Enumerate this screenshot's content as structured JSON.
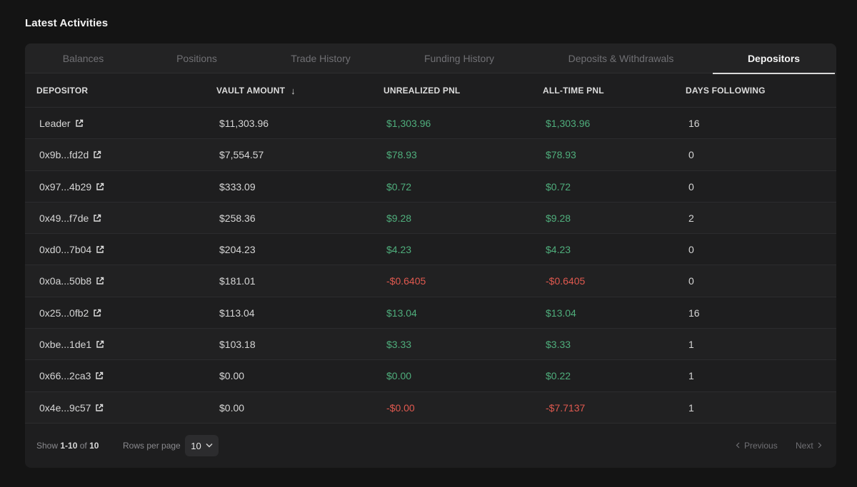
{
  "section_title": "Latest Activities",
  "tabs": [
    {
      "label": "Balances"
    },
    {
      "label": "Positions"
    },
    {
      "label": "Trade History"
    },
    {
      "label": "Funding History"
    },
    {
      "label": "Deposits & Withdrawals"
    },
    {
      "label": "Depositors"
    }
  ],
  "active_tab": "Depositors",
  "columns": {
    "depositor": "DEPOSITOR",
    "vault_amount": "VAULT AMOUNT",
    "unrealized_pnl": "UNREALIZED PNL",
    "all_time_pnl": "ALL-TIME PNL",
    "days_following": "DAYS FOLLOWING"
  },
  "sort_indicator": "↓",
  "rows": [
    {
      "depositor": "Leader",
      "vault_amount": "$11,303.96",
      "unrealized_pnl": "$1,303.96",
      "all_time_pnl": "$1,303.96",
      "days_following": "16"
    },
    {
      "depositor": "0x9b...fd2d",
      "vault_amount": "$7,554.57",
      "unrealized_pnl": "$78.93",
      "all_time_pnl": "$78.93",
      "days_following": "0"
    },
    {
      "depositor": "0x97...4b29",
      "vault_amount": "$333.09",
      "unrealized_pnl": "$0.72",
      "all_time_pnl": "$0.72",
      "days_following": "0"
    },
    {
      "depositor": "0x49...f7de",
      "vault_amount": "$258.36",
      "unrealized_pnl": "$9.28",
      "all_time_pnl": "$9.28",
      "days_following": "2"
    },
    {
      "depositor": "0xd0...7b04",
      "vault_amount": "$204.23",
      "unrealized_pnl": "$4.23",
      "all_time_pnl": "$4.23",
      "days_following": "0"
    },
    {
      "depositor": "0x0a...50b8",
      "vault_amount": "$181.01",
      "unrealized_pnl": "-$0.6405",
      "all_time_pnl": "-$0.6405",
      "days_following": "0"
    },
    {
      "depositor": "0x25...0fb2",
      "vault_amount": "$113.04",
      "unrealized_pnl": "$13.04",
      "all_time_pnl": "$13.04",
      "days_following": "16"
    },
    {
      "depositor": "0xbe...1de1",
      "vault_amount": "$103.18",
      "unrealized_pnl": "$3.33",
      "all_time_pnl": "$3.33",
      "days_following": "1"
    },
    {
      "depositor": "0x66...2ca3",
      "vault_amount": "$0.00",
      "unrealized_pnl": "$0.00",
      "all_time_pnl": "$0.22",
      "days_following": "1"
    },
    {
      "depositor": "0x4e...9c57",
      "vault_amount": "$0.00",
      "unrealized_pnl": "-$0.00",
      "all_time_pnl": "-$7.7137",
      "days_following": "1"
    }
  ],
  "colors": {
    "positive": "#4fae7c",
    "negative": "#e0594f"
  },
  "footer": {
    "show_prefix": "Show",
    "show_range": "1-10",
    "show_of": "of",
    "show_total": "10",
    "rows_per_page_label": "Rows per page",
    "rows_per_page_value": "10",
    "previous_label": "Previous",
    "next_label": "Next"
  }
}
